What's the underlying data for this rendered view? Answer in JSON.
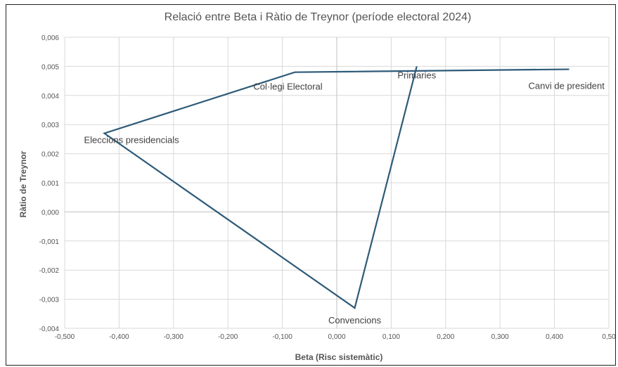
{
  "chart_data": {
    "type": "scatter",
    "title": "Relació entre Beta i Ràtio de Treynor (període electoral 2024)",
    "xlabel": "Beta (Risc sistemàtic)",
    "ylabel": "Ràtio de Treynor",
    "xlim": [
      -0.5,
      0.5
    ],
    "ylim": [
      -0.004,
      0.006
    ],
    "x_ticks": [
      -0.5,
      -0.4,
      -0.3,
      -0.2,
      -0.1,
      0,
      0.1,
      0.2,
      0.3,
      0.4,
      0.5
    ],
    "x_tick_labels": [
      "-0,500",
      "-0,400",
      "-0,300",
      "-0,200",
      "-0,100",
      "0,000",
      "0,100",
      "0,200",
      "0,300",
      "0,400",
      "0,50"
    ],
    "y_ticks": [
      -0.004,
      -0.003,
      -0.002,
      -0.001,
      0,
      0.001,
      0.002,
      0.003,
      0.004,
      0.005,
      0.006
    ],
    "y_tick_labels": [
      "-0,004",
      "-0,003",
      "-0,002",
      "-0,001",
      "0,000",
      "0,001",
      "0,002",
      "0,003",
      "0,004",
      "0,005",
      "0,006"
    ],
    "grid": "vertical and horizontal",
    "line_color": "#2e5a78",
    "points": [
      {
        "label": "Canvi de president",
        "x": 0.427,
        "y": 0.0049
      },
      {
        "label": "Col·legi Electoral",
        "x": -0.077,
        "y": 0.0048
      },
      {
        "label": "Eleccions presidencials",
        "x": -0.427,
        "y": 0.0027
      },
      {
        "label": "Convencions",
        "x": 0.033,
        "y": -0.0033
      },
      {
        "label": "Primaries",
        "x": 0.147,
        "y": 0.005
      }
    ]
  }
}
